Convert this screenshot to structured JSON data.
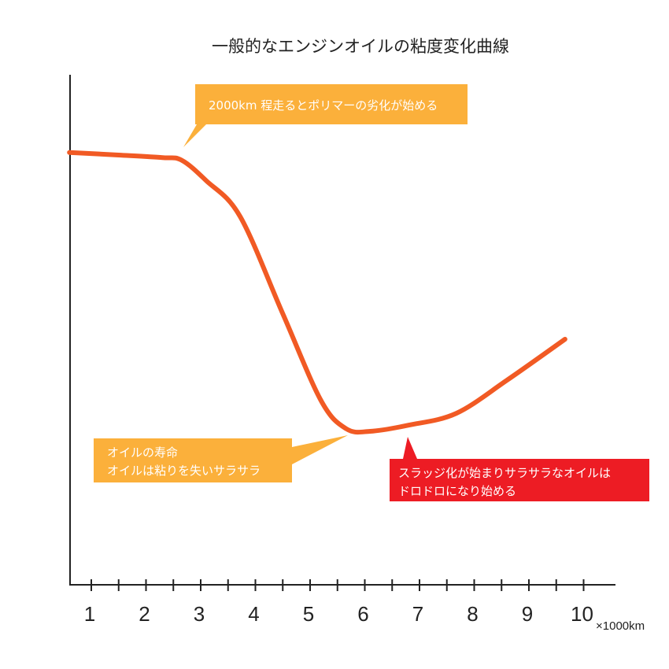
{
  "chart_data": {
    "type": "line",
    "title": "一般的なエンジンオイルの粘度変化曲線",
    "xlabel": "×1000km",
    "ylabel": "",
    "x_ticks": [
      "1",
      "2",
      "3",
      "4",
      "5",
      "6",
      "7",
      "8",
      "9",
      "10"
    ],
    "xlim": [
      0.6,
      11
    ],
    "ylim": [
      0,
      100
    ],
    "grid": false,
    "series": [
      {
        "name": "viscosity",
        "color": "#F15A24",
        "x": [
          0.6,
          1.5,
          2.3,
          2.65,
          3.1,
          3.72,
          4.5,
          5.2,
          5.66,
          6.1,
          6.8,
          7.67,
          8.6,
          9.66
        ],
        "y": [
          84.5,
          84.0,
          83.5,
          83.0,
          79.0,
          72.0,
          53.0,
          36.0,
          30.5,
          30.0,
          31.2,
          33.5,
          40.0,
          48.0
        ]
      }
    ],
    "annotations": [
      {
        "lines": [
          "2000km 程走るとポリマーの劣化が始める"
        ],
        "color": "#FBB03B",
        "points_to_x": 2.6
      },
      {
        "lines": [
          "オイルの寿命",
          "オイルは粘りを失いサラサラ"
        ],
        "color": "#FBB03B",
        "points_to_x": 5.8
      },
      {
        "lines": [
          "スラッジ化が始まりサラサラなオイルは",
          "ドロドロになり始める"
        ],
        "color": "#ED1C24",
        "points_to_x": 6.0
      }
    ]
  }
}
